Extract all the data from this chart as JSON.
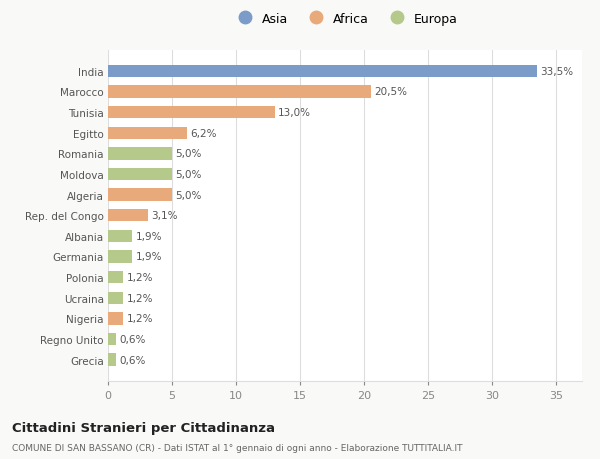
{
  "countries": [
    "India",
    "Marocco",
    "Tunisia",
    "Egitto",
    "Romania",
    "Moldova",
    "Algeria",
    "Rep. del Congo",
    "Albania",
    "Germania",
    "Polonia",
    "Ucraina",
    "Nigeria",
    "Regno Unito",
    "Grecia"
  ],
  "values": [
    33.5,
    20.5,
    13.0,
    6.2,
    5.0,
    5.0,
    5.0,
    3.1,
    1.9,
    1.9,
    1.2,
    1.2,
    1.2,
    0.6,
    0.6
  ],
  "labels": [
    "33,5%",
    "20,5%",
    "13,0%",
    "6,2%",
    "5,0%",
    "5,0%",
    "5,0%",
    "3,1%",
    "1,9%",
    "1,9%",
    "1,2%",
    "1,2%",
    "1,2%",
    "0,6%",
    "0,6%"
  ],
  "continents": [
    "Asia",
    "Africa",
    "Africa",
    "Africa",
    "Europa",
    "Europa",
    "Africa",
    "Africa",
    "Europa",
    "Europa",
    "Europa",
    "Europa",
    "Africa",
    "Europa",
    "Europa"
  ],
  "colors": {
    "Asia": "#7b9cc8",
    "Africa": "#e8aa7a",
    "Europa": "#b5c98a"
  },
  "legend_order": [
    "Asia",
    "Africa",
    "Europa"
  ],
  "xlim": [
    0,
    37
  ],
  "xticks": [
    0,
    5,
    10,
    15,
    20,
    25,
    30,
    35
  ],
  "title1": "Cittadini Stranieri per Cittadinanza",
  "title2": "COMUNE DI SAN BASSANO (CR) - Dati ISTAT al 1° gennaio di ogni anno - Elaborazione TUTTITALIA.IT",
  "background_color": "#f9f9f7",
  "plot_bg_color": "#ffffff",
  "grid_color": "#dddddd",
  "label_color": "#555555",
  "tick_color": "#888888"
}
